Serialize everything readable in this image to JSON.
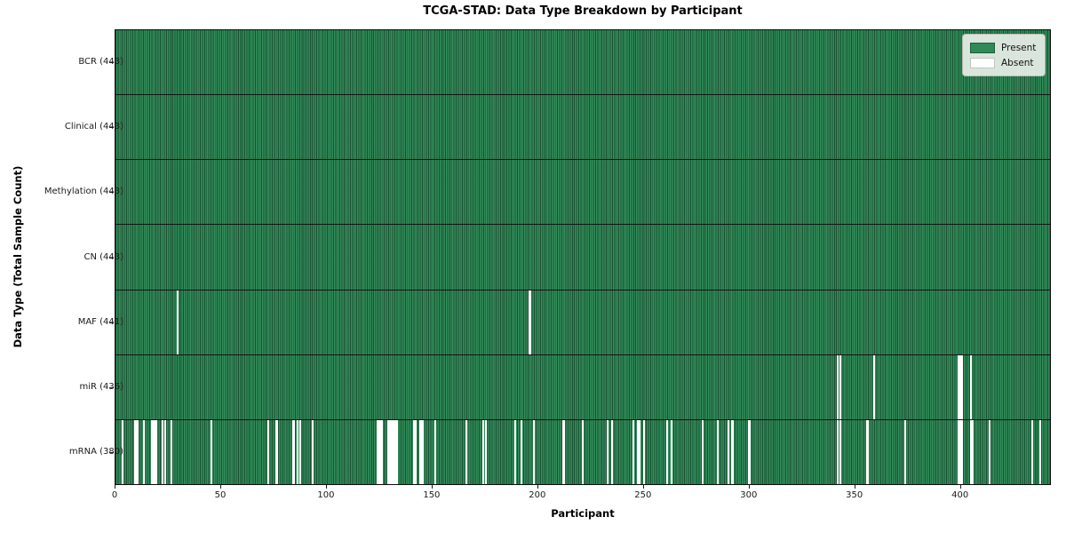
{
  "chart_data": {
    "type": "heatmap",
    "title": "TCGA-STAD: Data Type Breakdown by Participant",
    "xlabel": "Participant",
    "ylabel": "Data Type (Total Sample Count)",
    "n_participants": 443,
    "x_range": [
      0,
      443
    ],
    "x_ticks": [
      0,
      50,
      100,
      150,
      200,
      250,
      300,
      350,
      400
    ],
    "grid": false,
    "legend_position": "upper right",
    "legend_entries": [
      {
        "label": "Present",
        "color": "#2e8b57"
      },
      {
        "label": "Absent",
        "color": "#ffffff"
      }
    ],
    "rows": [
      {
        "label": "BCR (443)",
        "data_type": "BCR",
        "total_samples": 443,
        "absent_participants": []
      },
      {
        "label": "Clinical (443)",
        "data_type": "Clinical",
        "total_samples": 443,
        "absent_participants": []
      },
      {
        "label": "Methylation (443)",
        "data_type": "Methylation",
        "total_samples": 443,
        "absent_participants": []
      },
      {
        "label": "CN (443)",
        "data_type": "CN",
        "total_samples": 443,
        "absent_participants": []
      },
      {
        "label": "MAF (441)",
        "data_type": "MAF",
        "total_samples": 441,
        "absent_participants": [
          29,
          196
        ]
      },
      {
        "label": "miR (436)",
        "data_type": "miR",
        "total_samples": 436,
        "absent_participants": [
          342,
          343,
          359,
          399,
          400,
          401,
          405
        ]
      },
      {
        "label": "mRNA (380)",
        "data_type": "mRNA",
        "total_samples": 380,
        "absent_participants": [
          3,
          9,
          10,
          13,
          17,
          18,
          19,
          22,
          23,
          26,
          45,
          72,
          76,
          84,
          86,
          87,
          93,
          124,
          125,
          126,
          129,
          130,
          131,
          132,
          133,
          141,
          142,
          144,
          145,
          151,
          166,
          174,
          175,
          189,
          192,
          198,
          212,
          221,
          233,
          235,
          245,
          247,
          248,
          250,
          261,
          263,
          278,
          285,
          290,
          292,
          300,
          342,
          343,
          356,
          374,
          399,
          400,
          401,
          405,
          406,
          414,
          434,
          438
        ]
      }
    ],
    "colors": {
      "present": "#2e8b57",
      "absent": "#ffffff",
      "bar_edge": "#16381f"
    }
  }
}
